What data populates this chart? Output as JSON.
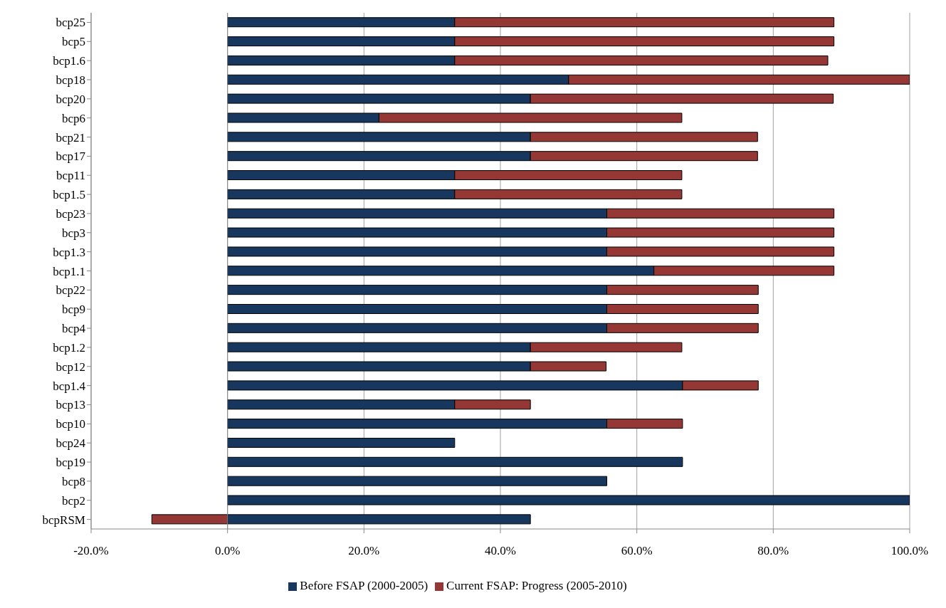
{
  "chart_data": {
    "type": "bar",
    "orientation": "horizontal",
    "stacked": true,
    "categories": [
      "bcp25",
      "bcp5",
      "bcp1.6",
      "bcp18",
      "bcp20",
      "bcp6",
      "bcp21",
      "bcp17",
      "bcp11",
      "bcp1.5",
      "bcp23",
      "bcp3",
      "bcp1.3",
      "bcp1.1",
      "bcp22",
      "bcp9",
      "bcp4",
      "bcp1.2",
      "bcp12",
      "bcp1.4",
      "bcp13",
      "bcp10",
      "bcp24",
      "bcp19",
      "bcp8",
      "bcp2",
      "bcpRSM"
    ],
    "series": [
      {
        "name": "Before FSAP (2000-2005)",
        "color": "#17375e",
        "values": [
          33.3,
          33.3,
          33.3,
          50,
          44.4,
          22.2,
          44.4,
          44.4,
          33.3,
          33.3,
          55.6,
          55.6,
          55.6,
          62.5,
          55.6,
          55.6,
          55.6,
          44.4,
          44.4,
          66.7,
          33.3,
          55.6,
          33.3,
          66.7,
          55.6,
          100,
          44.4
        ]
      },
      {
        "name": "Current FSAP: Progress (2005-2010)",
        "color": "#953735",
        "values": [
          55.6,
          55.6,
          54.7,
          50,
          44.4,
          44.4,
          33.3,
          33.3,
          33.3,
          33.3,
          33.3,
          33.3,
          33.3,
          26.4,
          22.2,
          22.2,
          22.2,
          22.2,
          11.1,
          11.1,
          11.1,
          11.1,
          0,
          0,
          0,
          0,
          -11.1
        ]
      }
    ],
    "xlim": [
      -20,
      100
    ],
    "xticks": [
      {
        "value": -20,
        "label": "-20.0%"
      },
      {
        "value": 0,
        "label": "0.0%"
      },
      {
        "value": 20,
        "label": "20.0%"
      },
      {
        "value": 40,
        "label": "40.0%"
      },
      {
        "value": 60,
        "label": "60.0%"
      },
      {
        "value": 80,
        "label": "80.0%"
      },
      {
        "value": 100,
        "label": "100.0%"
      }
    ],
    "grid": "x",
    "legend": "bottom"
  }
}
